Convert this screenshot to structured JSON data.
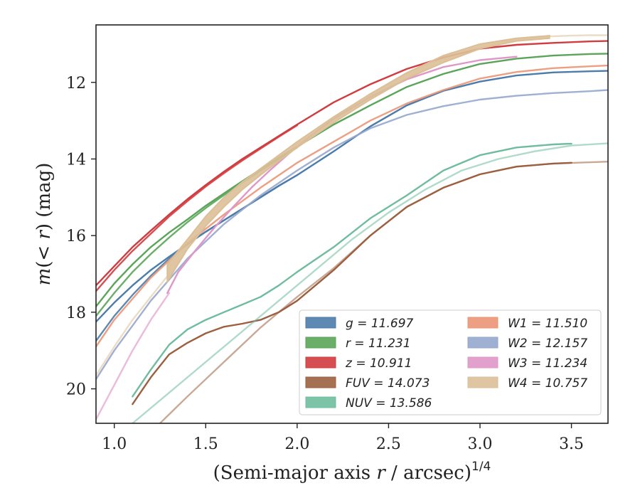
{
  "chart_data": {
    "type": "line",
    "xlabel": "(Semi-major axis r / arcsec)^{1/4}",
    "xlabel_main": "(Semi-major axis ",
    "xlabel_var": "r",
    "xlabel_tail": " / arcsec)",
    "xlabel_sup": "1/4",
    "ylabel": "m(< r) (mag)",
    "ylabel_m": "m",
    "ylabel_paren_open": "(",
    "ylabel_lt": "< ",
    "ylabel_r": "r",
    "ylabel_paren_close": ")",
    "ylabel_unit": " (mag)",
    "xlim": [
      0.9,
      3.7
    ],
    "ylim": [
      20.9,
      10.5
    ],
    "y_inverted": true,
    "xticks": [
      "1.0",
      "1.5",
      "2.0",
      "2.5",
      "3.0",
      "3.5"
    ],
    "yticks": [
      "12",
      "14",
      "16",
      "18",
      "20"
    ],
    "grid": false,
    "legend_position": "bottom-right",
    "legend_columns": 2,
    "series": [
      {
        "name": "g",
        "legend_label": "g = 11.697",
        "color": "#4c7cab",
        "band": false,
        "curves": [
          {
            "opacity": 1.0,
            "x": [
              0.9,
              1.0,
              1.1,
              1.2,
              1.3,
              1.4,
              1.5,
              1.6,
              1.7,
              1.8,
              1.9,
              2.0,
              2.2,
              2.4,
              2.6,
              2.8,
              3.0,
              3.2,
              3.4,
              3.6,
              3.7
            ],
            "y": [
              18.25,
              17.75,
              17.3,
              16.9,
              16.55,
              16.22,
              15.9,
              15.6,
              15.3,
              15.0,
              14.7,
              14.42,
              13.8,
              13.15,
              12.6,
              12.22,
              11.98,
              11.82,
              11.74,
              11.71,
              11.7
            ]
          },
          {
            "opacity": 0.9,
            "x": [
              0.9,
              1.0,
              1.1,
              1.2,
              1.3,
              1.4,
              1.5,
              1.6,
              1.7,
              1.8,
              1.9,
              2.0
            ],
            "y": [
              18.75,
              18.1,
              17.55,
              17.05,
              16.6,
              16.22,
              15.9,
              15.6,
              15.3,
              15.0,
              14.7,
              14.42
            ]
          }
        ]
      },
      {
        "name": "r",
        "legend_label": "r = 11.231",
        "color": "#5aa55a",
        "band": false,
        "curves": [
          {
            "opacity": 1.0,
            "x": [
              0.9,
              1.0,
              1.1,
              1.2,
              1.3,
              1.4,
              1.5,
              1.6,
              1.7,
              1.8,
              1.9,
              2.0,
              2.2,
              2.4,
              2.6,
              2.8,
              3.0,
              3.2,
              3.4,
              3.6,
              3.7
            ],
            "y": [
              17.85,
              17.25,
              16.75,
              16.3,
              15.92,
              15.58,
              15.22,
              14.9,
              14.58,
              14.27,
              13.97,
              13.68,
              13.1,
              12.6,
              12.12,
              11.78,
              11.52,
              11.38,
              11.3,
              11.26,
              11.25
            ]
          },
          {
            "opacity": 0.9,
            "x": [
              0.9,
              1.0,
              1.1,
              1.2,
              1.3,
              1.4,
              1.5,
              1.6,
              1.7,
              1.8,
              1.9,
              2.0
            ],
            "y": [
              18.1,
              17.5,
              16.95,
              16.48,
              16.05,
              15.65,
              15.28,
              14.94,
              14.62,
              14.3,
              14.0,
              13.7
            ]
          }
        ]
      },
      {
        "name": "z",
        "legend_label": "z = 10.911",
        "color": "#d03c3f",
        "band": false,
        "curves": [
          {
            "opacity": 1.0,
            "x": [
              0.9,
              1.0,
              1.1,
              1.2,
              1.3,
              1.4,
              1.5,
              1.6,
              1.7,
              1.8,
              1.9,
              2.0,
              2.2,
              2.4,
              2.6,
              2.8,
              3.0,
              3.2,
              3.4,
              3.6,
              3.7
            ],
            "y": [
              17.3,
              16.8,
              16.3,
              15.87,
              15.45,
              15.05,
              14.68,
              14.33,
              14.0,
              13.7,
              13.4,
              13.1,
              12.52,
              12.05,
              11.65,
              11.35,
              11.12,
              11.02,
              10.97,
              10.93,
              10.92
            ]
          },
          {
            "opacity": 0.9,
            "x": [
              0.9,
              1.0,
              1.1,
              1.2,
              1.3,
              1.4,
              1.5,
              1.6,
              1.7,
              1.8,
              1.9,
              2.0
            ],
            "y": [
              17.45,
              16.9,
              16.4,
              15.95,
              15.5,
              15.1,
              14.72,
              14.37,
              14.04,
              13.73,
              13.42,
              13.12
            ]
          }
        ]
      },
      {
        "name": "FUV",
        "legend_label": "FUV = 14.073",
        "color": "#9c6040",
        "band": false,
        "curves": [
          {
            "opacity": 1.0,
            "x": [
              1.1,
              1.2,
              1.3,
              1.4,
              1.5,
              1.6,
              1.7,
              1.8,
              1.9,
              2.0,
              2.2,
              2.4,
              2.6,
              2.8,
              3.0,
              3.2,
              3.4,
              3.5
            ],
            "y": [
              20.4,
              19.7,
              19.1,
              18.8,
              18.55,
              18.38,
              18.3,
              18.2,
              18.0,
              17.7,
              16.9,
              16.0,
              15.25,
              14.75,
              14.4,
              14.2,
              14.12,
              14.1
            ]
          },
          {
            "opacity": 0.55,
            "x": [
              1.25,
              1.4,
              1.6,
              1.8,
              2.0,
              2.2,
              2.4,
              2.6,
              2.8,
              3.0,
              3.2,
              3.4,
              3.7
            ],
            "y": [
              20.9,
              20.2,
              19.3,
              18.4,
              17.6,
              16.85,
              16.0,
              15.25,
              14.75,
              14.4,
              14.2,
              14.12,
              14.07
            ]
          }
        ]
      },
      {
        "name": "NUV",
        "legend_label": "NUV = 13.586",
        "color": "#6fbc9f",
        "band": false,
        "curves": [
          {
            "opacity": 1.0,
            "x": [
              1.1,
              1.2,
              1.3,
              1.4,
              1.5,
              1.6,
              1.7,
              1.8,
              1.9,
              2.0,
              2.2,
              2.4,
              2.6,
              2.8,
              3.0,
              3.2,
              3.4,
              3.5
            ],
            "y": [
              20.2,
              19.5,
              18.85,
              18.45,
              18.2,
              18.0,
              17.8,
              17.6,
              17.3,
              16.95,
              16.3,
              15.55,
              14.95,
              14.3,
              13.9,
              13.7,
              13.62,
              13.6
            ]
          },
          {
            "opacity": 0.55,
            "x": [
              1.1,
              1.3,
              1.5,
              1.7,
              1.9,
              2.1,
              2.3,
              2.5,
              2.7,
              2.9,
              3.1,
              3.3,
              3.5,
              3.7
            ],
            "y": [
              20.9,
              20.1,
              19.3,
              18.5,
              17.7,
              16.9,
              16.1,
              15.4,
              14.8,
              14.3,
              14.0,
              13.8,
              13.65,
              13.59
            ]
          }
        ]
      },
      {
        "name": "W1",
        "legend_label": "W1 = 11.510",
        "color": "#ea9574",
        "band": false,
        "curves": [
          {
            "opacity": 0.9,
            "x": [
              0.9,
              1.0,
              1.2,
              1.4,
              1.6,
              1.8,
              2.0,
              2.2,
              2.4,
              2.6,
              2.8,
              3.0,
              3.2,
              3.4,
              3.6,
              3.7
            ],
            "y": [
              18.9,
              18.2,
              17.1,
              16.2,
              15.45,
              14.75,
              14.1,
              13.55,
              13.0,
              12.55,
              12.2,
              11.9,
              11.73,
              11.63,
              11.58,
              11.56
            ]
          }
        ]
      },
      {
        "name": "W2",
        "legend_label": "W2 = 12.157",
        "color": "#96a7cd",
        "band": false,
        "curves": [
          {
            "opacity": 0.9,
            "x": [
              0.9,
              1.0,
              1.2,
              1.4,
              1.6,
              1.8,
              2.0,
              2.2,
              2.4,
              2.6,
              2.8,
              3.0,
              3.2,
              3.4,
              3.6,
              3.7
            ],
            "y": [
              19.75,
              19.0,
              17.7,
              16.6,
              15.7,
              14.95,
              14.3,
              13.7,
              13.2,
              12.85,
              12.62,
              12.45,
              12.35,
              12.28,
              12.23,
              12.2
            ]
          }
        ]
      },
      {
        "name": "W3",
        "legend_label": "W3 = 11.234",
        "color": "#df97c8",
        "band": false,
        "curves": [
          {
            "opacity": 1.0,
            "x": [
              1.29,
              1.35,
              1.45,
              1.55,
              1.65,
              1.75,
              1.85,
              1.95,
              2.05,
              2.2,
              2.4,
              2.6,
              2.8,
              3.0,
              3.2
            ],
            "y": [
              17.5,
              16.95,
              16.35,
              15.78,
              15.25,
              14.75,
              14.3,
              13.88,
              13.48,
              12.95,
              12.38,
              11.92,
              11.6,
              11.42,
              11.33
            ]
          },
          {
            "opacity": 0.65,
            "x": [
              0.9,
              1.0,
              1.1,
              1.2,
              1.3
            ],
            "y": [
              20.8,
              19.9,
              19.0,
              18.2,
              17.5
            ]
          }
        ]
      },
      {
        "name": "W4",
        "legend_label": "W4 = 10.757",
        "color": "#dbbf97",
        "band": true,
        "band_x": [
          1.29,
          1.4,
          1.5,
          1.6,
          1.7,
          1.8,
          1.9,
          2.0,
          2.2,
          2.4,
          2.6,
          2.8,
          3.0,
          3.2,
          3.38
        ],
        "band_upper": [
          16.75,
          16.1,
          15.5,
          15.0,
          14.6,
          14.25,
          13.9,
          13.55,
          12.9,
          12.3,
          11.75,
          11.3,
          11.0,
          10.85,
          10.78
        ],
        "band_lower": [
          17.2,
          16.35,
          15.75,
          15.25,
          14.8,
          14.42,
          14.05,
          13.7,
          13.05,
          12.45,
          11.9,
          11.48,
          11.12,
          10.92,
          10.85
        ],
        "curves": [
          {
            "opacity": 0.55,
            "x": [
              3.38,
              3.5,
              3.6,
              3.7
            ],
            "y": [
              10.8,
              10.78,
              10.77,
              10.77
            ]
          },
          {
            "opacity": 0.55,
            "x": [
              0.9,
              1.0,
              1.1,
              1.2,
              1.3
            ],
            "y": [
              19.65,
              18.9,
              18.2,
              17.6,
              17.0
            ]
          }
        ]
      }
    ]
  }
}
